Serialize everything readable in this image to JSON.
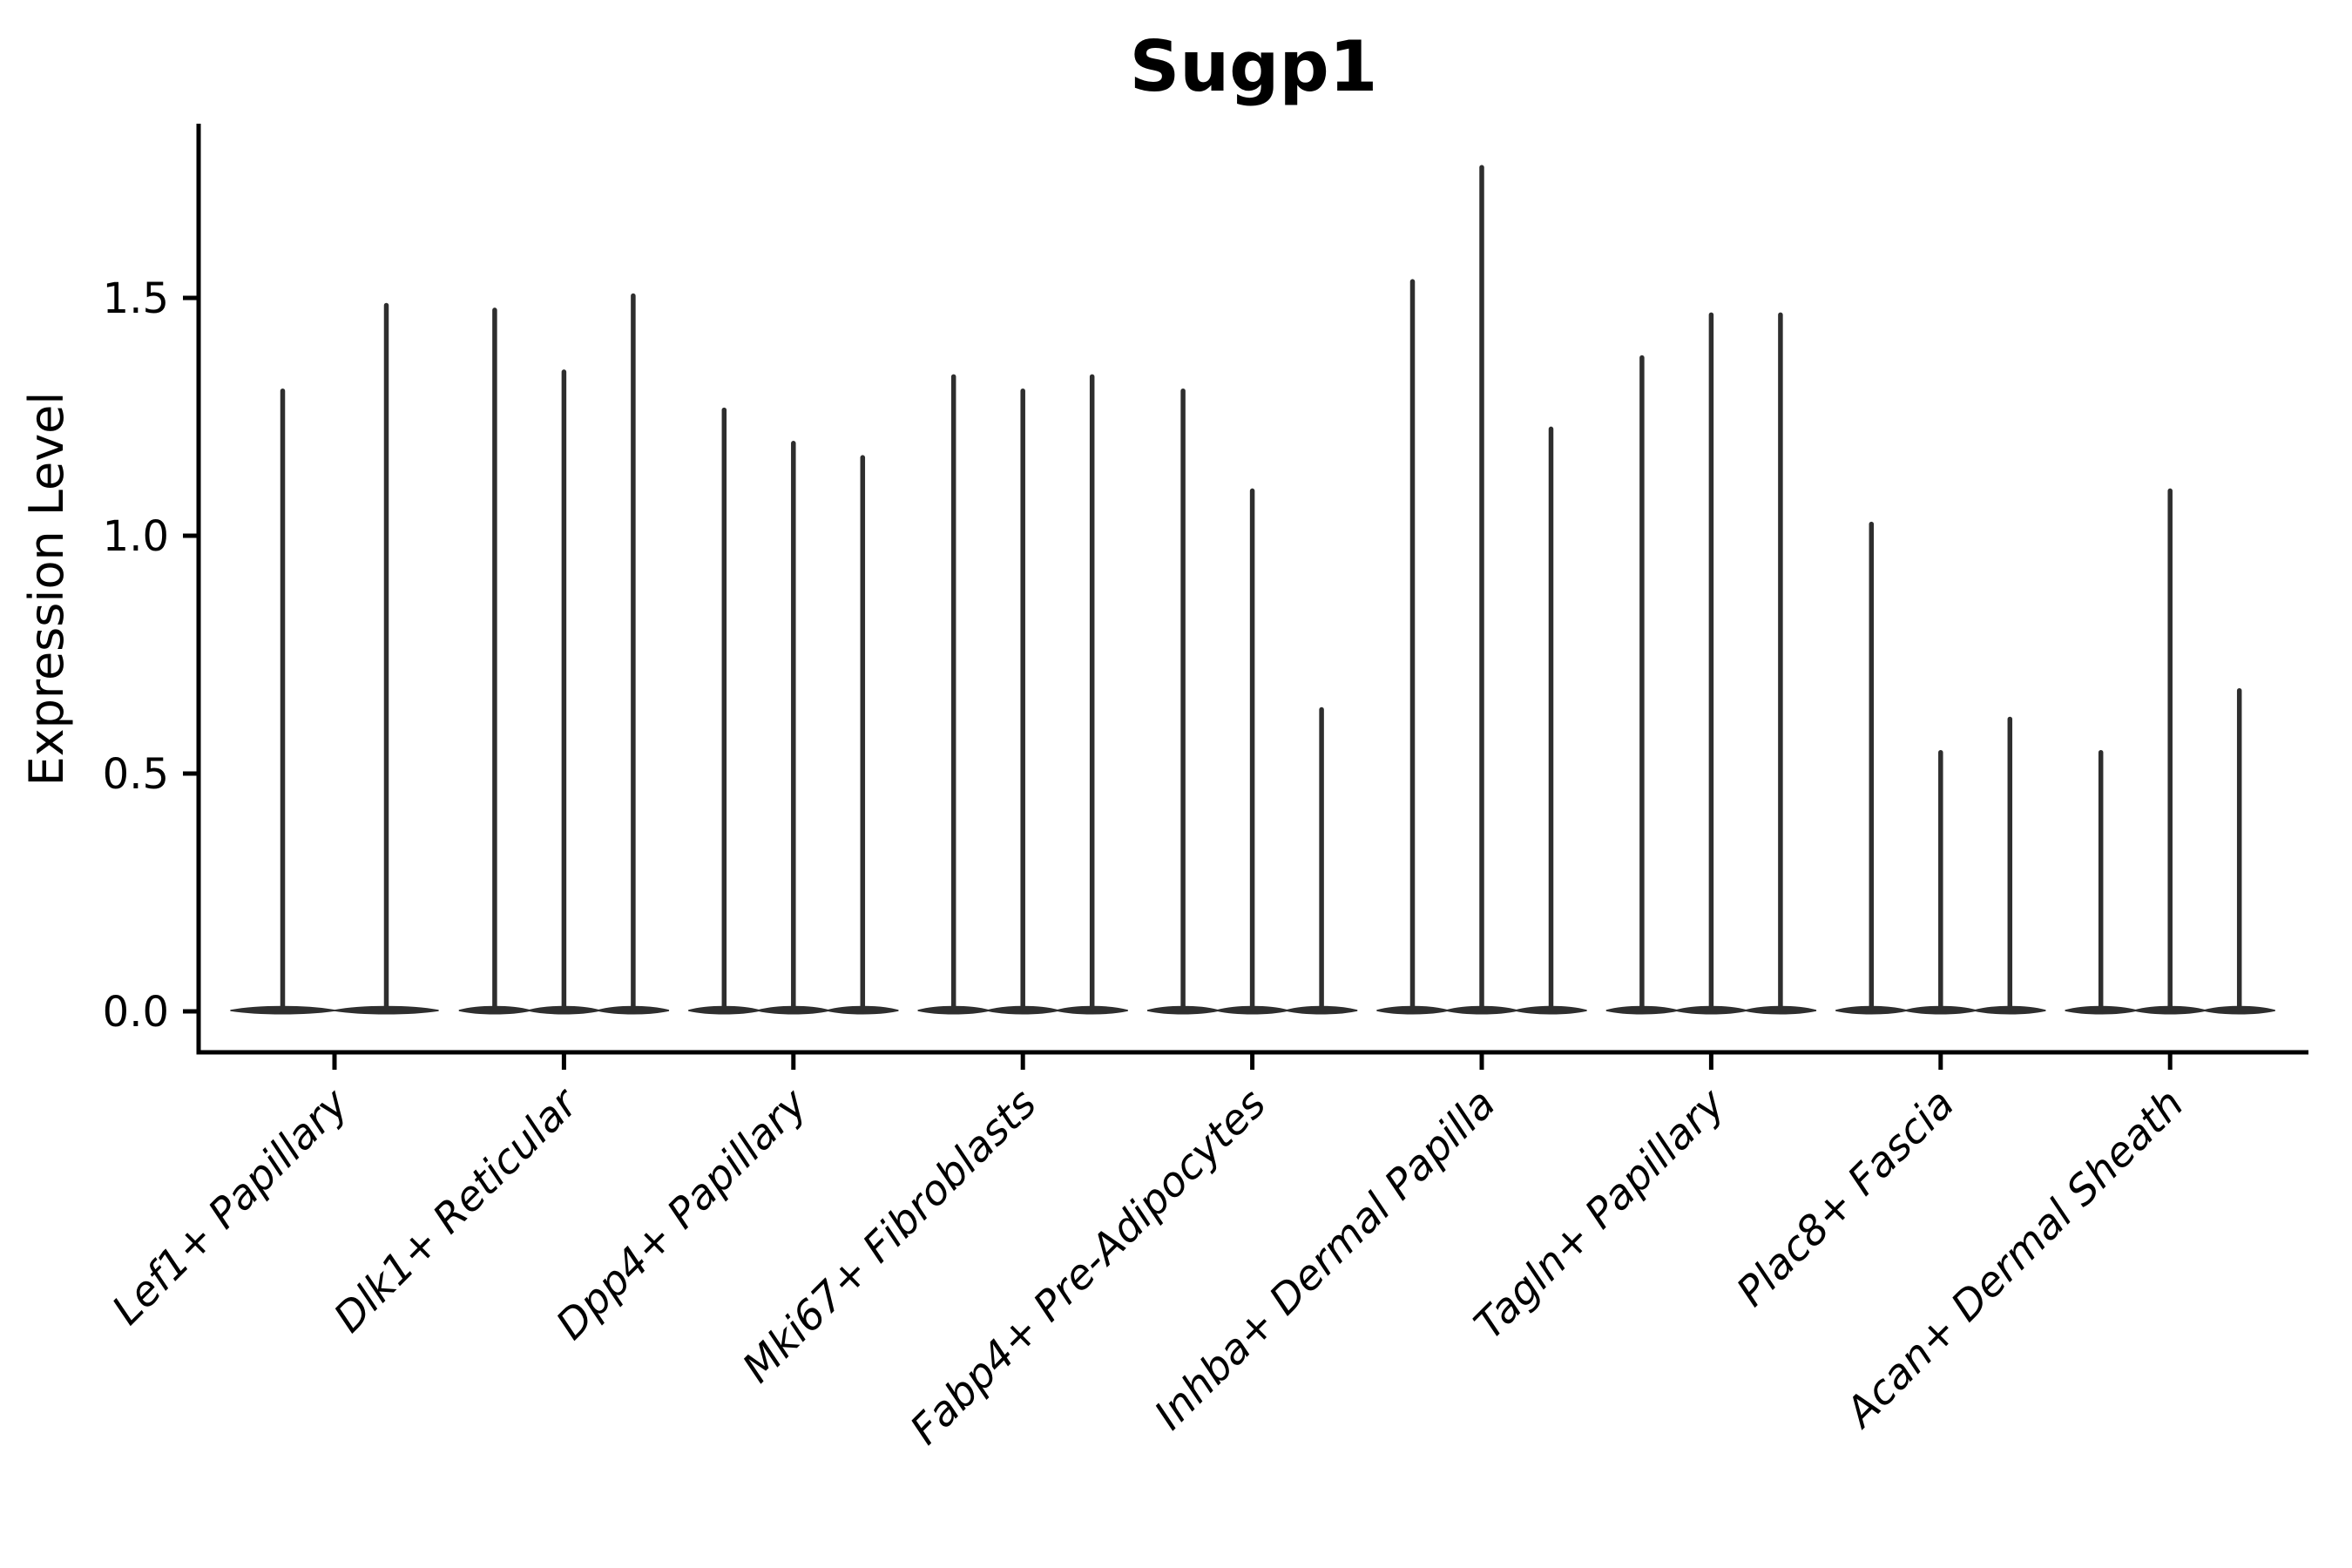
{
  "chart_data": {
    "type": "violin",
    "title": "Sugp1",
    "ylabel": "Expression Level",
    "xlabel": "",
    "grid": false,
    "legend": "none",
    "ylim": [
      -0.09,
      1.87
    ],
    "yticks": [
      0.0,
      0.5,
      1.0,
      1.5
    ],
    "ytick_labels": [
      "0.0",
      "0.5",
      "1.0",
      "1.5"
    ],
    "categories": [
      "Lef1+ Papillary",
      "Dlk1+ Reticular",
      "Dpp4+ Papillary",
      "Mki67+ Fibroblasts",
      "Fabp4+ Pre-Adipocytes",
      "Inhba+ Dermal Papilla",
      "Tagln+ Papillary",
      "Plac8+ Fascia",
      "Acan+ Dermal Sheath"
    ],
    "violin_description": "Each category shows narrow split violins: distributions massed at 0 (flat wide base) with a thin spike reaching the maximum expression value.",
    "violin_max_values": [
      [
        1.31,
        1.49
      ],
      [
        1.48,
        1.35,
        1.51
      ],
      [
        1.27,
        1.2,
        1.17
      ],
      [
        1.34,
        1.31,
        1.34
      ],
      [
        1.31,
        1.1,
        0.64
      ],
      [
        1.54,
        1.78,
        1.23
      ],
      [
        1.38,
        1.47,
        1.47
      ],
      [
        1.03,
        0.55,
        0.62
      ],
      [
        0.55,
        1.1,
        0.68
      ]
    ]
  },
  "colors": {
    "violin": "#2e2e2e",
    "axis": "#000000",
    "text": "#000000",
    "background": "#ffffff"
  }
}
